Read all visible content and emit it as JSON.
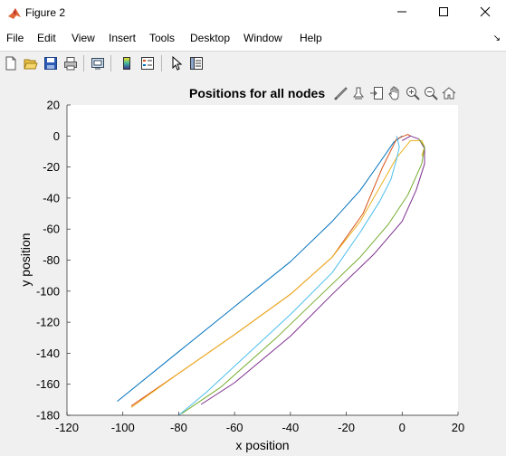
{
  "window": {
    "title": "Figure 2"
  },
  "menu": [
    "File",
    "Edit",
    "View",
    "Insert",
    "Tools",
    "Desktop",
    "Window",
    "Help"
  ],
  "toolbar": [
    "new-figure-icon",
    "open-file-icon",
    "save-icon",
    "print-icon",
    "print-preview-icon",
    "colorbar-icon",
    "legend-icon",
    "pointer-icon",
    "property-editor-icon"
  ],
  "axes_toolbar": [
    "brush-icon",
    "data-cursor-icon",
    "export-icon",
    "pan-icon",
    "zoom-in-icon",
    "zoom-out-icon",
    "home-icon"
  ],
  "chart_data": {
    "type": "line",
    "title": "Positions for all nodes",
    "xlabel": "x position",
    "ylabel": "y position",
    "xlim": [
      -120,
      20
    ],
    "ylim": [
      -180,
      20
    ],
    "xticks": [
      "-120",
      "-100",
      "-80",
      "-60",
      "-40",
      "-20",
      "0",
      "20"
    ],
    "yticks": [
      "20",
      "0",
      "-20",
      "-40",
      "-60",
      "-80",
      "-100",
      "-120",
      "-140",
      "-160",
      "-180"
    ],
    "grid": false,
    "series": [
      {
        "color": "#0072bd",
        "x": [
          -102,
          -80,
          -60,
          -40,
          -25,
          -15,
          -8,
          -3,
          0
        ],
        "y": [
          -171,
          -139,
          -110,
          -81,
          -55,
          -35,
          -17,
          -4,
          0
        ]
      },
      {
        "color": "#d95319",
        "x": [
          -97,
          -80,
          -60,
          -40,
          -25,
          -14,
          -7,
          -2,
          2,
          3
        ],
        "y": [
          -174,
          -153,
          -128,
          -102,
          -78,
          -50,
          -20,
          -2,
          1,
          0
        ]
      },
      {
        "color": "#edb120",
        "x": [
          -97,
          -80,
          -60,
          -40,
          -25,
          -15,
          -8,
          -2,
          3,
          7,
          8,
          7
        ],
        "y": [
          -175,
          -153,
          -128,
          -102,
          -78,
          -55,
          -33,
          -14,
          -3,
          -3,
          -7,
          -13
        ]
      },
      {
        "color": "#7e2f8e",
        "x": [
          -72,
          -60,
          -40,
          -25,
          -10,
          0,
          5,
          8,
          8,
          6,
          3,
          0
        ],
        "y": [
          -173,
          -159,
          -129,
          -102,
          -76,
          -55,
          -35,
          -18,
          -8,
          -2,
          0,
          -3
        ]
      },
      {
        "color": "#77ac30",
        "x": [
          -79,
          -65,
          -45,
          -30,
          -15,
          -5,
          2,
          7,
          8,
          6
        ],
        "y": [
          -179,
          -162,
          -130,
          -104,
          -78,
          -57,
          -38,
          -18,
          -7,
          -2
        ]
      },
      {
        "color": "#4dbeee",
        "x": [
          -80,
          -70,
          -55,
          -40,
          -25,
          -15,
          -8,
          -4,
          -2,
          -1,
          -2
        ],
        "y": [
          -180,
          -165,
          -140,
          -115,
          -88,
          -62,
          -42,
          -28,
          -15,
          -7,
          0
        ]
      }
    ]
  }
}
